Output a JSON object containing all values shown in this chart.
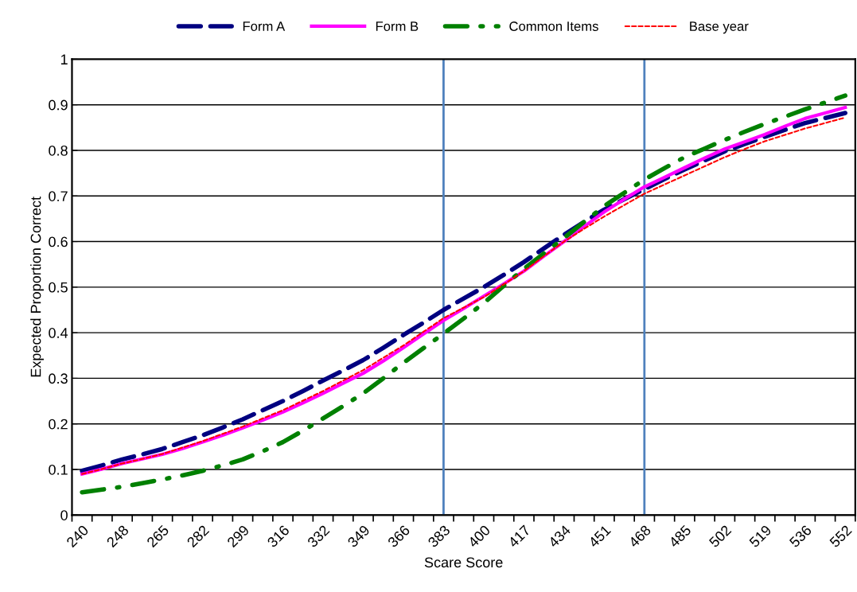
{
  "chart_data": {
    "type": "line",
    "xlabel": "Scare Score",
    "ylabel": "Expected Proportion Correct",
    "categories": [
      "240",
      null,
      "248",
      null,
      "265",
      null,
      "282",
      null,
      "299",
      null,
      "316",
      null,
      "332",
      null,
      "349",
      null,
      "366",
      null,
      "383",
      null,
      "400",
      null,
      "417",
      null,
      "434",
      null,
      "451",
      null,
      "468",
      null,
      "485",
      null,
      "502",
      null,
      "519",
      null,
      "536",
      null,
      "552"
    ],
    "series": [
      {
        "name": "Form A",
        "color": "#000080",
        "line_style": "dashed",
        "values": [
          0.097,
          0.109,
          0.122,
          0.133,
          0.145,
          0.16,
          0.175,
          0.192,
          0.21,
          0.23,
          0.25,
          0.272,
          0.295,
          0.317,
          0.34,
          0.367,
          0.395,
          0.422,
          0.45,
          0.475,
          0.5,
          0.527,
          0.555,
          0.585,
          0.615,
          0.643,
          0.67,
          0.693,
          0.715,
          0.737,
          0.758,
          0.778,
          0.798,
          0.814,
          0.83,
          0.845,
          0.86,
          0.871,
          0.882
        ]
      },
      {
        "name": "Form B",
        "color": "#ff00ff",
        "line_style": "solid",
        "values": [
          0.09,
          0.101,
          0.113,
          0.123,
          0.133,
          0.146,
          0.16,
          0.175,
          0.191,
          0.208,
          0.226,
          0.246,
          0.267,
          0.289,
          0.311,
          0.338,
          0.367,
          0.397,
          0.427,
          0.453,
          0.48,
          0.507,
          0.535,
          0.568,
          0.6,
          0.633,
          0.665,
          0.693,
          0.72,
          0.741,
          0.762,
          0.783,
          0.803,
          0.819,
          0.835,
          0.853,
          0.87,
          0.882,
          0.894
        ]
      },
      {
        "name": "Common Items",
        "color": "#008000",
        "line_style": "dashdot",
        "values": [
          0.05,
          0.056,
          0.062,
          0.07,
          0.078,
          0.087,
          0.097,
          0.109,
          0.122,
          0.14,
          0.16,
          0.185,
          0.212,
          0.239,
          0.267,
          0.3,
          0.334,
          0.366,
          0.398,
          0.431,
          0.465,
          0.503,
          0.54,
          0.574,
          0.608,
          0.643,
          0.678,
          0.707,
          0.736,
          0.761,
          0.785,
          0.804,
          0.823,
          0.841,
          0.858,
          0.874,
          0.89,
          0.905,
          0.92
        ]
      },
      {
        "name": "Base year",
        "color": "#ff0000",
        "line_style": "dotted",
        "values": [
          0.09,
          0.101,
          0.113,
          0.123,
          0.134,
          0.148,
          0.162,
          0.178,
          0.194,
          0.212,
          0.23,
          0.251,
          0.272,
          0.295,
          0.318,
          0.345,
          0.372,
          0.402,
          0.432,
          0.455,
          0.478,
          0.506,
          0.535,
          0.568,
          0.6,
          0.628,
          0.655,
          0.68,
          0.705,
          0.725,
          0.745,
          0.765,
          0.785,
          0.803,
          0.82,
          0.834,
          0.848,
          0.86,
          0.872
        ]
      }
    ],
    "ylim": [
      0,
      1
    ],
    "yticks": [
      0,
      0.1,
      0.2,
      0.3,
      0.4,
      0.5,
      0.6,
      0.7,
      0.8,
      0.9,
      1
    ],
    "ref_lines": [
      {
        "axis": "x",
        "value": "383",
        "color": "#4f81bd"
      },
      {
        "axis": "x",
        "value": "468",
        "color": "#4f81bd"
      }
    ],
    "grid": "y",
    "legend": "top"
  }
}
